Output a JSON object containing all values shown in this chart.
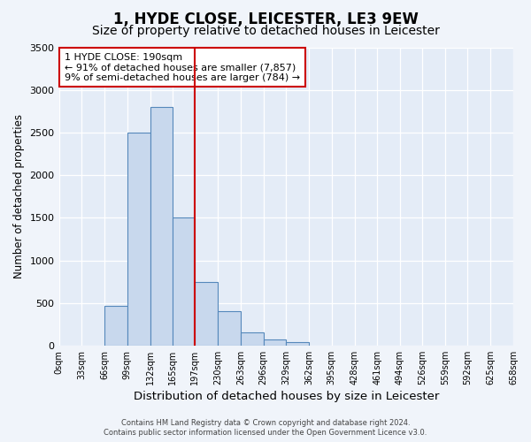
{
  "title": "1, HYDE CLOSE, LEICESTER, LE3 9EW",
  "subtitle": "Size of property relative to detached houses in Leicester",
  "xlabel": "Distribution of detached houses by size in Leicester",
  "ylabel": "Number of detached properties",
  "bin_edges": [
    0,
    33,
    66,
    99,
    132,
    165,
    197,
    230,
    263,
    296,
    329,
    362,
    395,
    428,
    461,
    494,
    526,
    559,
    592,
    625,
    658
  ],
  "bar_heights": [
    0,
    0,
    470,
    2500,
    2800,
    1500,
    750,
    400,
    150,
    70,
    40,
    0,
    0,
    0,
    0,
    0,
    0,
    0,
    0,
    0
  ],
  "bar_color": "#c8d8ed",
  "bar_edgecolor": "#5588bb",
  "vline_x": 197,
  "vline_color": "#cc0000",
  "ylim": [
    0,
    3500
  ],
  "annotation_line1": "1 HYDE CLOSE: 190sqm",
  "annotation_line2": "← 91% of detached houses are smaller (7,857)",
  "annotation_line3": "9% of semi-detached houses are larger (784) →",
  "annotation_box_color": "#ffffff",
  "annotation_box_edgecolor": "#cc0000",
  "footer_line1": "Contains HM Land Registry data © Crown copyright and database right 2024.",
  "footer_line2": "Contains public sector information licensed under the Open Government Licence v3.0.",
  "background_color": "#f0f4fa",
  "plot_background_color": "#e4ecf7",
  "title_fontsize": 12,
  "subtitle_fontsize": 10,
  "xlabel_fontsize": 9.5,
  "ylabel_fontsize": 8.5,
  "tick_labels": [
    "0sqm",
    "33sqm",
    "66sqm",
    "99sqm",
    "132sqm",
    "165sqm",
    "197sqm",
    "230sqm",
    "263sqm",
    "296sqm",
    "329sqm",
    "362sqm",
    "395sqm",
    "428sqm",
    "461sqm",
    "494sqm",
    "526sqm",
    "559sqm",
    "592sqm",
    "625sqm",
    "658sqm"
  ],
  "yticks": [
    0,
    500,
    1000,
    1500,
    2000,
    2500,
    3000,
    3500
  ]
}
